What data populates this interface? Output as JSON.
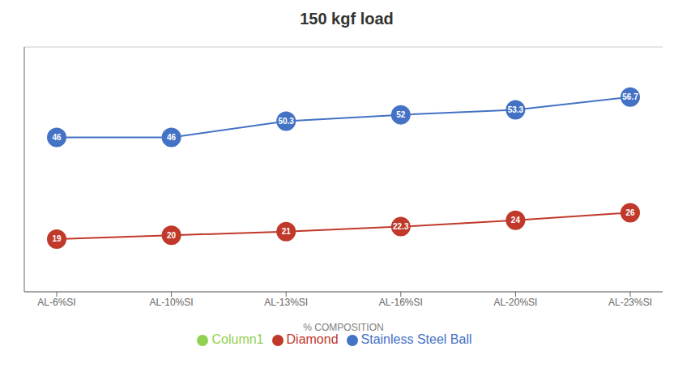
{
  "chart_data": {
    "type": "line",
    "title": "150 kgf load",
    "xlabel": "% COMPOSITION",
    "categories": [
      "AL-6%SI",
      "AL-10%SI",
      "AL-13%SI",
      "AL-16%SI",
      "AL-20%SI",
      "AL-23%SI"
    ],
    "series": [
      {
        "name": "Stainless Steel Ball",
        "color": "#4472C4",
        "marker": "circle",
        "values": [
          46,
          46,
          50.3,
          52,
          53.3,
          56.7
        ]
      },
      {
        "name": "Diamond",
        "color": "#C0392B",
        "marker": "circle",
        "values": [
          19,
          20,
          21,
          22.3,
          24,
          26
        ]
      },
      {
        "name": "Column1",
        "color": "#92D050",
        "marker": "circle",
        "values": [
          null,
          null,
          null,
          null,
          null,
          null
        ]
      }
    ],
    "ylim": [
      5,
      70
    ],
    "yticks": [
      10,
      20,
      30,
      40,
      50,
      60
    ],
    "grid": true,
    "legend": "bottom",
    "data_labels": true,
    "tick_labels": "x"
  }
}
